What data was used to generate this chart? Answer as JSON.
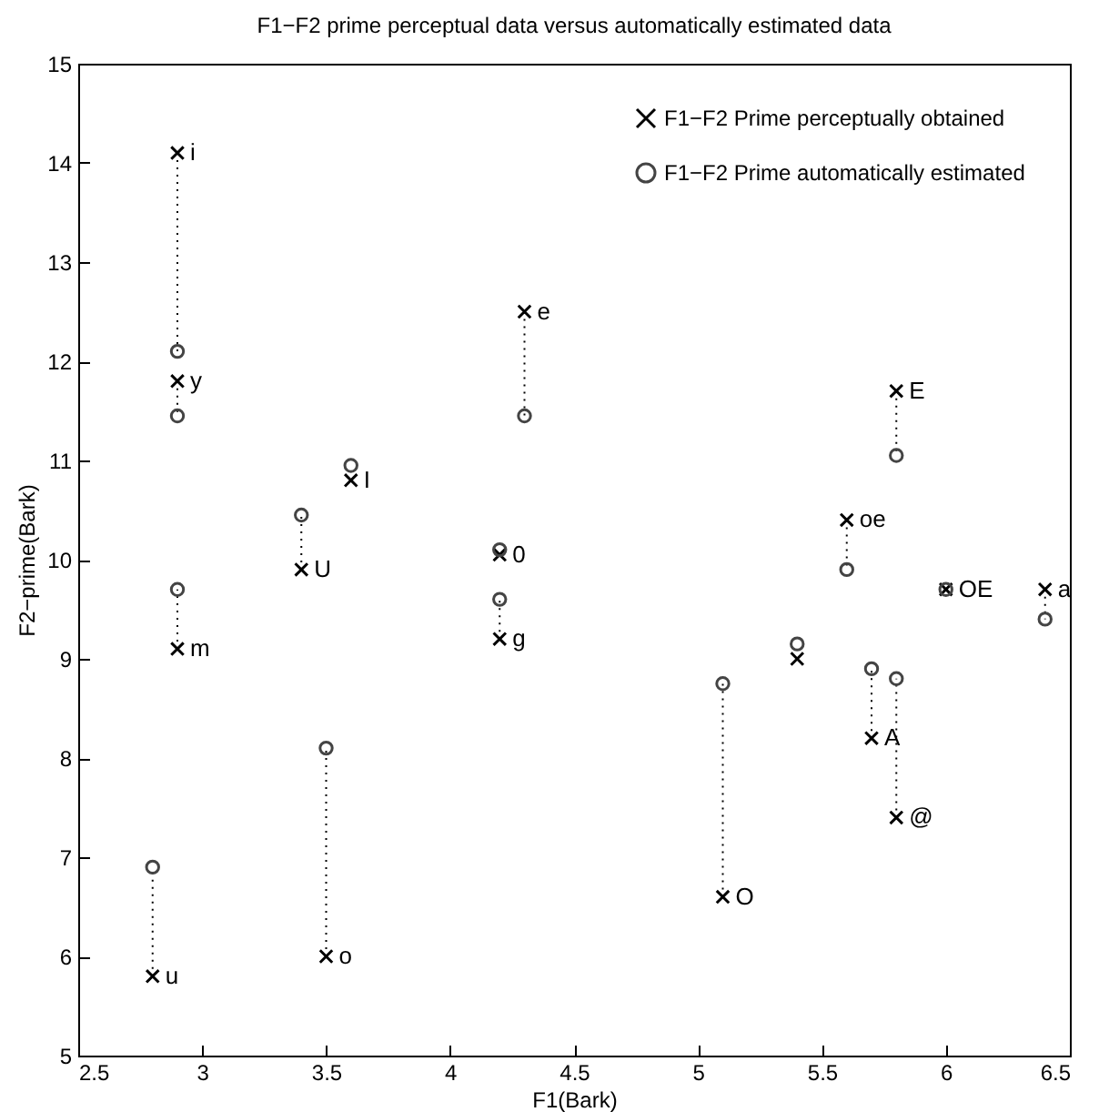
{
  "chart_data": {
    "type": "scatter",
    "title": "F1−F2 prime perceptual data versus automatically estimated data",
    "xlabel": "F1(Bark)",
    "ylabel": "F2−prime(Bark)",
    "x": [
      2.9,
      2.9,
      2.9,
      2.8,
      3.4,
      3.6,
      3.5,
      4.3,
      4.2,
      4.2,
      5.1,
      5.4,
      5.7,
      5.8,
      5.8,
      5.6,
      6.0,
      6.4
    ],
    "series": [
      {
        "name": "F1−F2 Prime perceptually obtained",
        "color": "#000000",
        "marker": "cross",
        "values": [
          14.1,
          11.8,
          9.1,
          5.8,
          9.9,
          10.8,
          6.0,
          12.5,
          10.05,
          9.2,
          6.6,
          9.0,
          8.2,
          7.4,
          11.7,
          10.4,
          9.7,
          9.7
        ]
      },
      {
        "name": "F1−F2 Prime automatically estimated",
        "color": "#444444",
        "marker": "circle",
        "values": [
          12.1,
          11.45,
          9.7,
          6.9,
          10.45,
          10.95,
          8.1,
          11.45,
          10.1,
          9.6,
          8.75,
          9.15,
          8.9,
          8.8,
          11.05,
          9.9,
          9.7,
          9.4
        ]
      }
    ],
    "annotations": [
      {
        "text": "i",
        "x": 2.9,
        "y": 14.1
      },
      {
        "text": "y",
        "x": 2.9,
        "y": 11.8
      },
      {
        "text": "m",
        "x": 2.9,
        "y": 9.1
      },
      {
        "text": "u",
        "x": 2.8,
        "y": 5.8
      },
      {
        "text": "U",
        "x": 3.4,
        "y": 9.9
      },
      {
        "text": "I",
        "x": 3.6,
        "y": 10.8
      },
      {
        "text": "o",
        "x": 3.5,
        "y": 6.0
      },
      {
        "text": "e",
        "x": 4.3,
        "y": 12.5
      },
      {
        "text": "0",
        "x": 4.2,
        "y": 10.05
      },
      {
        "text": "g",
        "x": 4.2,
        "y": 9.2
      },
      {
        "text": "O",
        "x": 5.1,
        "y": 6.6
      },
      {
        "text": "A",
        "x": 5.7,
        "y": 8.2
      },
      {
        "text": "@",
        "x": 5.8,
        "y": 7.4
      },
      {
        "text": "E",
        "x": 5.8,
        "y": 11.7
      },
      {
        "text": "oe",
        "x": 5.6,
        "y": 10.4
      },
      {
        "text": "OE",
        "x": 6.0,
        "y": 9.7
      },
      {
        "text": "a",
        "x": 6.4,
        "y": 9.7
      }
    ],
    "xlim": [
      2.5,
      6.5
    ],
    "xticks": [
      2.5,
      3,
      3.5,
      4,
      4.5,
      5,
      5.5,
      6,
      6.5
    ],
    "ylim": [
      5,
      15
    ],
    "yticks": [
      5,
      6,
      7,
      8,
      9,
      10,
      11,
      12,
      13,
      14,
      15
    ],
    "line_style": "dotted",
    "legend": "top right",
    "grid": false
  }
}
